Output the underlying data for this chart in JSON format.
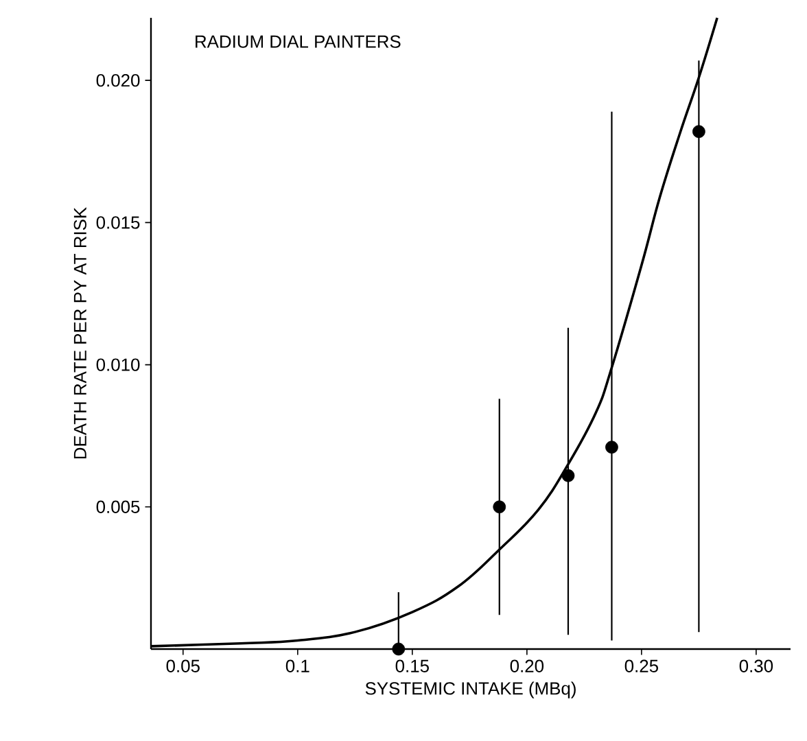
{
  "chart_data": {
    "type": "scatter",
    "title": "RADIUM DIAL PAINTERS",
    "xlabel": "SYSTEMIC INTAKE (MBq)",
    "ylabel": "DEATH RATE PER PY AT RISK",
    "xlim": [
      0.036,
      0.315
    ],
    "ylim": [
      0,
      0.0222
    ],
    "xticks": [
      0.05,
      0.1,
      0.15,
      {
        "value": 0.2,
        "label": "0.20"
      },
      0.25,
      {
        "value": 0.3,
        "label": "0.30"
      }
    ],
    "yticks": [
      0.005,
      {
        "value": 0.01,
        "label": "0.010"
      },
      0.015,
      {
        "value": 0.02,
        "label": "0.020"
      }
    ],
    "grid": false,
    "marker": "circle",
    "series": [
      {
        "color": "#000000",
        "x": [
          0.144,
          0.188,
          0.218,
          0.237,
          0.275
        ],
        "values": [
          0.0,
          0.005,
          0.0061,
          0.0071,
          0.0182
        ],
        "errors": [
          [
            0.0,
            0.002
          ],
          [
            0.0012,
            0.0088
          ],
          [
            0.0005,
            0.0113
          ],
          [
            0.0003,
            0.0189
          ],
          [
            0.0006,
            0.0207
          ]
        ]
      },
      {
        "type": "line",
        "color": "#000000",
        "line_style": "solid",
        "marker": "none",
        "x": [
          0.036,
          0.075,
          0.1,
          0.125,
          0.15,
          0.17,
          0.188,
          0.205,
          0.218,
          0.23,
          0.237,
          0.25,
          0.258,
          0.267,
          0.275,
          0.283
        ],
        "values": [
          0.0001,
          0.0002,
          0.0003,
          0.0006,
          0.0013,
          0.0022,
          0.0035,
          0.0049,
          0.0065,
          0.0083,
          0.0099,
          0.0135,
          0.0159,
          0.0182,
          0.0201,
          0.0222
        ]
      }
    ]
  }
}
